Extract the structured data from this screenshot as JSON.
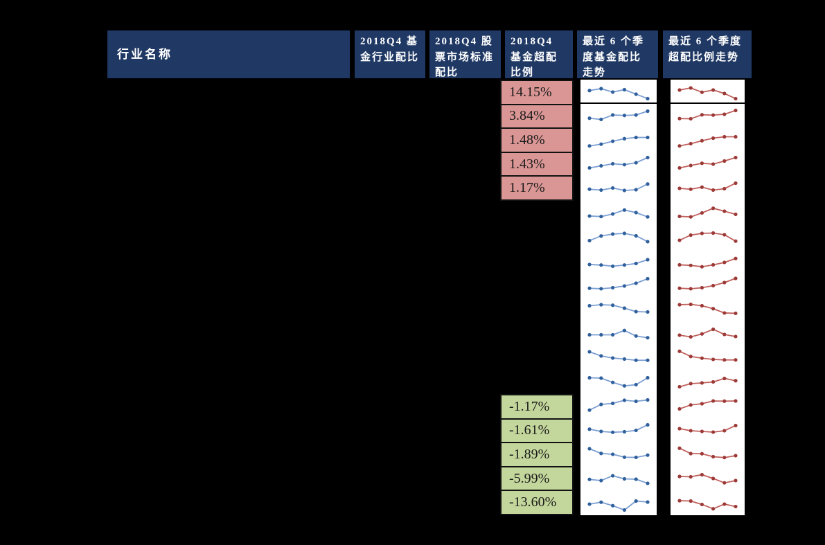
{
  "page": {
    "background_color": "#000000",
    "description": "基金行业配置表（2018Q4），含行业配比、超配比例及最近6个季度走势迷你图"
  },
  "chart_data": {
    "type": "table",
    "columns": [
      "行业名称",
      "2018Q4 基金行业配比",
      "2018Q4 股票市场标准配比",
      "2018Q4 基金超配比例",
      "最近 6 个季度基金配比走势",
      "最近 6 个季度超配比例走势"
    ],
    "row_count": 18,
    "points_per_sparkline": 6,
    "colors": {
      "header_bg": "#1f3864",
      "header_text": "#ffffff",
      "positive_cell_bg": "#d99694",
      "negative_cell_bg": "#c3d69b",
      "cell_text": "#1a1a1a",
      "fund_line": "#7b9fd3",
      "fund_marker": "#30609c",
      "overweight_line": "#c0605c",
      "overweight_marker": "#9c3a37",
      "sparkline_bg": "#ffffff"
    },
    "overweight_positive": {
      "bg": "#d99694",
      "start_row": 1,
      "values": [
        "14.15%",
        "3.84%",
        "1.48%",
        "1.43%",
        "1.17%"
      ]
    },
    "overweight_negative": {
      "bg": "#c3d69b",
      "start_row": 14,
      "values": [
        "-1.17%",
        "-1.61%",
        "-1.89%",
        "-5.99%",
        "-13.60%"
      ]
    },
    "sparklines": {
      "fund_allocation_trend": {
        "legend": "最近 6 个季度基金配比走势",
        "chart_type": "line",
        "unit": "relative_height_pct",
        "series": [
          [
            55,
            66,
            46,
            60,
            34,
            8
          ],
          [
            35,
            28,
            54,
            51,
            54,
            76
          ],
          [
            15,
            25,
            42,
            57,
            64,
            64
          ],
          [
            28,
            40,
            52,
            47,
            58,
            88
          ],
          [
            45,
            40,
            52,
            38,
            42,
            75
          ],
          [
            30,
            27,
            42,
            65,
            50,
            25
          ],
          [
            28,
            55,
            66,
            70,
            56,
            22
          ],
          [
            30,
            27,
            20,
            27,
            36,
            58
          ],
          [
            33,
            30,
            36,
            46,
            62,
            88
          ],
          [
            72,
            78,
            75,
            58,
            38,
            36
          ],
          [
            40,
            40,
            40,
            65,
            33,
            23
          ],
          [
            82,
            58,
            46,
            40,
            33,
            33
          ],
          [
            72,
            70,
            45,
            25,
            32,
            72
          ],
          [
            25,
            58,
            64,
            82,
            76,
            84
          ],
          [
            55,
            42,
            37,
            40,
            48,
            80
          ],
          [
            82,
            55,
            50,
            33,
            32,
            45
          ],
          [
            45,
            38,
            66,
            48,
            46,
            22
          ],
          [
            42,
            53,
            33,
            8,
            60,
            54
          ]
        ]
      },
      "overweight_ratio_trend": {
        "legend": "最近 6 个季度超配比例走势",
        "chart_type": "line",
        "unit": "relative_height_pct",
        "series": [
          [
            58,
            70,
            45,
            58,
            38,
            8
          ],
          [
            33,
            32,
            55,
            53,
            58,
            80
          ],
          [
            15,
            28,
            45,
            60,
            68,
            68
          ],
          [
            28,
            42,
            55,
            50,
            68,
            88
          ],
          [
            50,
            45,
            57,
            40,
            48,
            80
          ],
          [
            28,
            25,
            48,
            75,
            58,
            40
          ],
          [
            30,
            60,
            70,
            72,
            62,
            25
          ],
          [
            28,
            25,
            17,
            28,
            42,
            65
          ],
          [
            33,
            30,
            36,
            48,
            66,
            90
          ],
          [
            78,
            80,
            72,
            55,
            30,
            28
          ],
          [
            38,
            28,
            45,
            72,
            42,
            30
          ],
          [
            85,
            55,
            45,
            38,
            35,
            35
          ],
          [
            20,
            38,
            42,
            48,
            68,
            55
          ],
          [
            32,
            55,
            62,
            78,
            77,
            78
          ],
          [
            58,
            46,
            42,
            38,
            46,
            76
          ],
          [
            85,
            54,
            53,
            36,
            31,
            42
          ],
          [
            62,
            60,
            72,
            50,
            25,
            38
          ],
          [
            62,
            60,
            40,
            15,
            42,
            28
          ]
        ]
      }
    }
  }
}
